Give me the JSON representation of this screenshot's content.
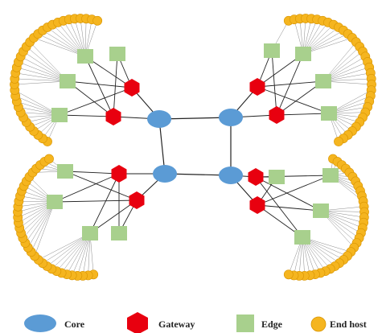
{
  "colors": {
    "core": "#5b9bd5",
    "gateway": "#e8000f",
    "edge": "#a8d08d",
    "host": "#f5b51f",
    "host_stroke": "#d89400",
    "link": "#222222",
    "host_link": "#8a8a8a"
  },
  "legend": {
    "core": "Core",
    "gateway": "Gateway",
    "edge": "Edge",
    "host": "End host"
  }
}
